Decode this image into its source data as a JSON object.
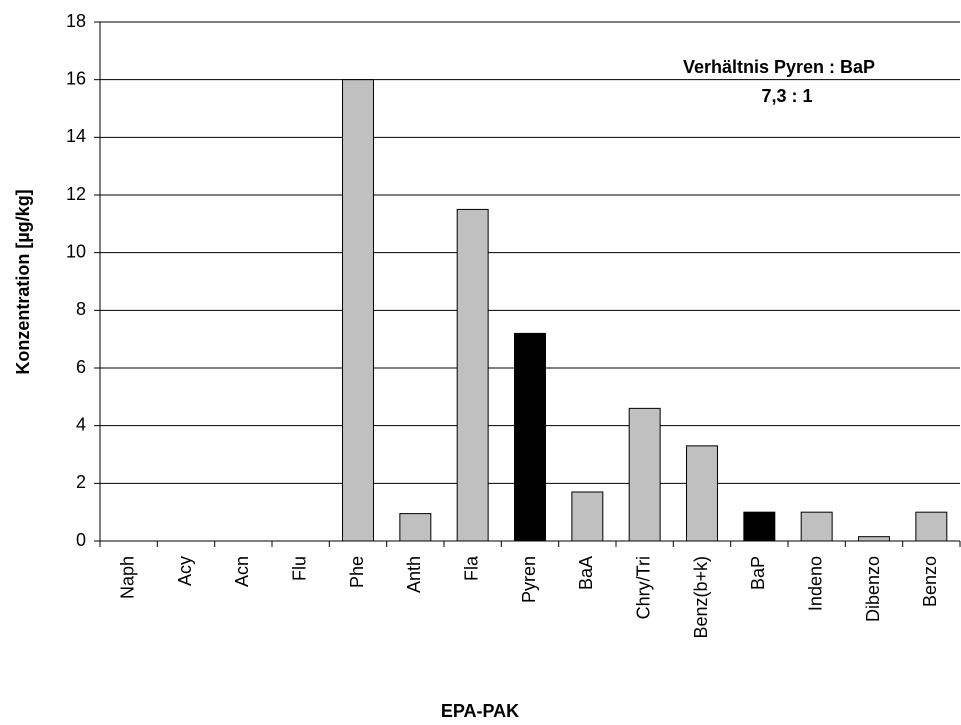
{
  "chart_data": {
    "type": "bar",
    "x_label": "EPA-PAK",
    "y_label": "Konzentration [µg/kg]",
    "annotations": [
      "Verhältnis Pyren : BaP",
      "7,3 : 1"
    ],
    "categories": [
      "Naph",
      "Acy",
      "Acn",
      "Flu",
      "Phe",
      "Anth",
      "Fla",
      "Pyren",
      "BaA",
      "Chry/Tri",
      "Benz(b+k)",
      "BaP",
      "Indeno",
      "Dibenzo",
      "Benzo"
    ],
    "values": [
      0,
      0,
      0,
      0,
      16,
      0.95,
      11.5,
      7.2,
      1.7,
      4.6,
      3.3,
      1.0,
      1.0,
      0.15,
      1.0
    ],
    "colors": [
      "#c0c0c0",
      "#c0c0c0",
      "#c0c0c0",
      "#c0c0c0",
      "#c0c0c0",
      "#c0c0c0",
      "#c0c0c0",
      "#000000",
      "#c0c0c0",
      "#c0c0c0",
      "#c0c0c0",
      "#000000",
      "#c0c0c0",
      "#c0c0c0",
      "#c0c0c0"
    ],
    "ylim": [
      0,
      18
    ],
    "yticks": [
      0,
      2,
      4,
      6,
      8,
      10,
      12,
      14,
      16,
      18
    ],
    "grid": true
  }
}
